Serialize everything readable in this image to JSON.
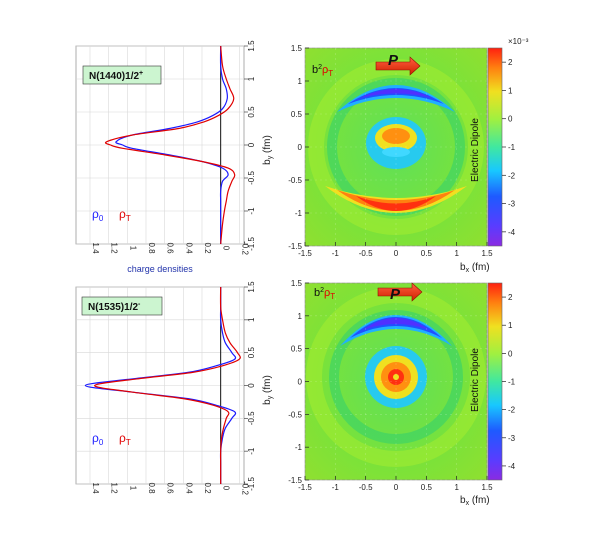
{
  "chart_data": [
    {
      "type": "line",
      "panel": "top-left",
      "state_label": "N(1440)1/2",
      "state_sup": "+",
      "xlabel": "charge densities",
      "ylabel": "b",
      "ylabel_sub": "y",
      "ylabel_unit": "(fm)",
      "x_direction": "reversed",
      "xlim": [
        -0.25,
        1.55
      ],
      "ylim": [
        -1.5,
        1.5
      ],
      "x_ticks": [
        "1.4",
        "1.2",
        "1",
        "0.8",
        "0.6",
        "0.4",
        "0.2",
        "0",
        "-0.2"
      ],
      "y_ticks": [
        "1.5",
        "1",
        "0.5",
        "0",
        "-0.5",
        "-1",
        "-1.5"
      ],
      "series": [
        {
          "name": "ρ",
          "name_sub": "0",
          "color": "#1a1aff",
          "y": [
            1.5,
            1.2,
            1.0,
            0.85,
            0.7,
            0.55,
            0.45,
            0.35,
            0.25,
            0.15,
            0.05,
            0.0,
            -0.05,
            -0.15,
            -0.25,
            -0.35,
            -0.45,
            -0.55,
            -0.7,
            -0.85,
            -1.0,
            -1.2,
            -1.5
          ],
          "x": [
            0.0,
            0.0,
            -0.02,
            -0.06,
            -0.07,
            -0.02,
            0.08,
            0.25,
            0.55,
            0.95,
            1.12,
            1.05,
            0.95,
            0.55,
            0.2,
            -0.02,
            -0.08,
            -0.02,
            0.0,
            0.0,
            0.0,
            0.0,
            0.0
          ]
        },
        {
          "name": "ρ",
          "name_sub": "T",
          "color": "#e00000",
          "y": [
            1.5,
            1.2,
            1.0,
            0.85,
            0.7,
            0.55,
            0.45,
            0.35,
            0.25,
            0.15,
            0.05,
            0.0,
            -0.05,
            -0.15,
            -0.25,
            -0.35,
            -0.45,
            -0.55,
            -0.7,
            -0.85,
            -1.0,
            -1.2,
            -1.5
          ],
          "x": [
            0.0,
            -0.02,
            -0.06,
            -0.1,
            -0.14,
            -0.08,
            0.02,
            0.18,
            0.45,
            0.95,
            1.22,
            1.18,
            1.05,
            0.6,
            0.2,
            -0.08,
            -0.15,
            -0.12,
            -0.08,
            -0.06,
            -0.04,
            -0.02,
            0.0
          ]
        }
      ]
    },
    {
      "type": "heatmap",
      "panel": "top-right",
      "quantity": "b",
      "quantity_sup": "2",
      "quantity_rho": "ρ",
      "quantity_sub": "T",
      "arrow_label": "P",
      "xlabel": "b",
      "xlabel_sub": "x",
      "xlabel_unit": "(fm)",
      "ylabel": "b",
      "ylabel_sub": "y",
      "ylabel_unit": "(fm)",
      "xlim": [
        -1.5,
        1.5
      ],
      "ylim": [
        -1.5,
        1.5
      ],
      "x_ticks": [
        "-1.5",
        "-1",
        "-0.5",
        "0",
        "0.5",
        "1",
        "1.5"
      ],
      "y_ticks": [
        "1.5",
        "1",
        "0.5",
        "0",
        "-0.5",
        "-1",
        "-1.5"
      ],
      "colorbar_label": "Electric Dipole",
      "colorbar_exponent": "×10⁻³",
      "zlim": [
        -4.5,
        2.5
      ],
      "colorbar_ticks": [
        "2",
        "1",
        "0",
        "-1",
        "-2",
        "-3",
        "-4"
      ]
    },
    {
      "type": "line",
      "panel": "bottom-left",
      "state_label": "N(1535)1/2",
      "state_sup": "-",
      "xlabel": "",
      "ylabel": "b",
      "ylabel_sub": "y",
      "ylabel_unit": "(fm)",
      "x_direction": "reversed",
      "xlim": [
        -0.25,
        1.55
      ],
      "ylim": [
        -1.5,
        1.5
      ],
      "x_ticks": [
        "1.4",
        "1.2",
        "1",
        "0.8",
        "0.6",
        "0.4",
        "0.2",
        "0",
        "-0.2"
      ],
      "y_ticks": [
        "1.5",
        "1",
        "0.5",
        "0",
        "-0.5",
        "-1",
        "-1.5"
      ],
      "series": [
        {
          "name": "ρ",
          "name_sub": "0",
          "color": "#1a1aff",
          "y": [
            1.5,
            1.2,
            1.0,
            0.8,
            0.65,
            0.5,
            0.4,
            0.3,
            0.2,
            0.1,
            0.0,
            -0.1,
            -0.2,
            -0.3,
            -0.4,
            -0.5,
            -0.65,
            -0.8,
            -1.0,
            -1.2,
            -1.5
          ],
          "x": [
            0.0,
            0.0,
            0.0,
            -0.02,
            -0.05,
            -0.12,
            -0.15,
            0.05,
            0.35,
            0.95,
            1.45,
            0.95,
            0.35,
            0.05,
            -0.15,
            -0.12,
            -0.05,
            -0.02,
            0.0,
            0.0,
            0.0
          ]
        },
        {
          "name": "ρ",
          "name_sub": "T",
          "color": "#e00000",
          "y": [
            1.5,
            1.2,
            1.0,
            0.8,
            0.65,
            0.5,
            0.4,
            0.3,
            0.2,
            0.1,
            0.0,
            -0.1,
            -0.2,
            -0.3,
            -0.4,
            -0.5,
            -0.65,
            -0.8,
            -1.0,
            -1.2,
            -1.5
          ],
          "x": [
            0.0,
            0.0,
            -0.02,
            -0.05,
            -0.1,
            -0.18,
            -0.2,
            -0.02,
            0.3,
            0.9,
            1.35,
            0.95,
            0.4,
            0.08,
            -0.08,
            -0.06,
            -0.03,
            -0.01,
            0.0,
            0.0,
            0.0
          ]
        }
      ]
    },
    {
      "type": "heatmap",
      "panel": "bottom-right",
      "quantity": "b",
      "quantity_sup": "2",
      "quantity_rho": "ρ",
      "quantity_sub": "T",
      "arrow_label": "P",
      "xlabel": "b",
      "xlabel_sub": "x",
      "xlabel_unit": "(fm)",
      "ylabel": "b",
      "ylabel_sub": "y",
      "ylabel_unit": "(fm)",
      "xlim": [
        -1.5,
        1.5
      ],
      "ylim": [
        -1.5,
        1.5
      ],
      "x_ticks": [
        "-1.5",
        "-1",
        "-0.5",
        "0",
        "0.5",
        "1",
        "1.5"
      ],
      "y_ticks": [
        "1.5",
        "1",
        "0.5",
        "0",
        "-0.5",
        "-1",
        "-1.5"
      ],
      "colorbar_label": "Electric Dipole",
      "zlim": [
        -4.5,
        2.5
      ],
      "colorbar_ticks": [
        "2",
        "1",
        "0",
        "-1",
        "-2",
        "-3",
        "-4"
      ]
    }
  ]
}
